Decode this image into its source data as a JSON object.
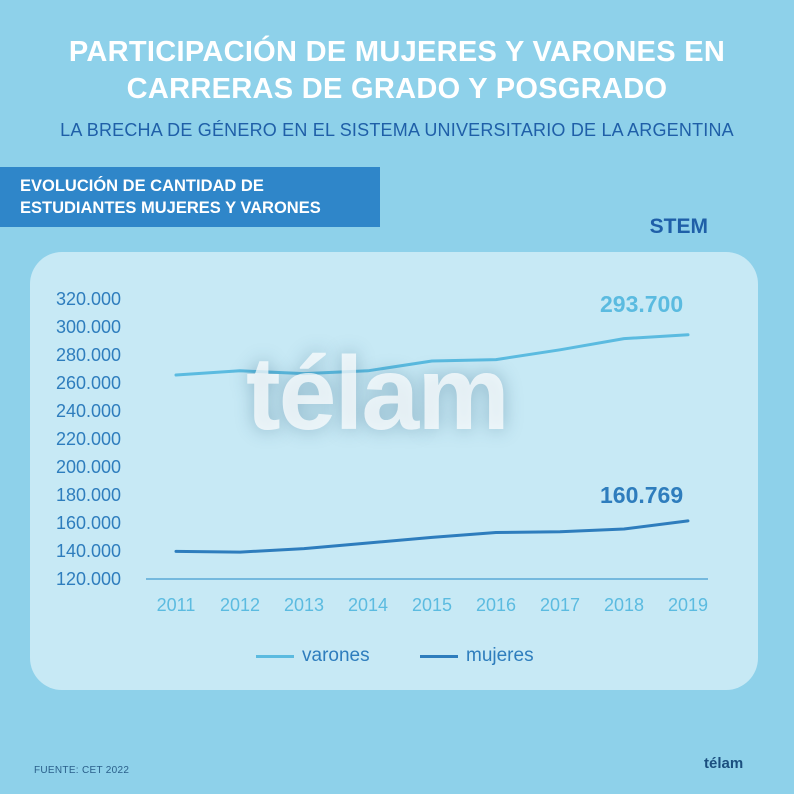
{
  "header": {
    "title_line1": "PARTICIPACIÓN DE MUJERES Y VARONES EN",
    "title_line2": "CARRERAS DE GRADO Y POSGRADO",
    "subtitle": "LA BRECHA DE GÉNERO EN EL SISTEMA UNIVERSITARIO DE LA ARGENTINA"
  },
  "banner": {
    "line1": "EVOLUCIÓN DE CANTIDAD DE",
    "line2": "ESTUDIANTES MUJERES Y VARONES"
  },
  "section_label": "STEM",
  "watermark": "télam",
  "footer": {
    "source": "FUENTE: CET 2022",
    "logo": "télam"
  },
  "colors": {
    "background": "#8ed1ea",
    "card": "#c7e9f5",
    "varones": "#5bbbe0",
    "mujeres": "#2e7dbd",
    "axis_text": "#2e7dbd"
  },
  "chart_data": {
    "type": "line",
    "x": [
      "2011",
      "2012",
      "2013",
      "2014",
      "2015",
      "2016",
      "2017",
      "2018",
      "2019"
    ],
    "ylim": [
      120000,
      320000
    ],
    "yticks": [
      "320.000",
      "300.000",
      "280.000",
      "260.000",
      "240.000",
      "220.000",
      "200.000",
      "180.000",
      "160.000",
      "140.000",
      "120.000"
    ],
    "ytick_values": [
      320000,
      300000,
      280000,
      260000,
      240000,
      220000,
      200000,
      180000,
      160000,
      140000,
      120000
    ],
    "series": [
      {
        "name": "varones",
        "color": "#5bbbe0",
        "values": [
          265000,
          268000,
          266000,
          268000,
          275000,
          276000,
          283000,
          291000,
          293700
        ],
        "end_label": "293.700"
      },
      {
        "name": "mujeres",
        "color": "#2e7dbd",
        "values": [
          139000,
          138500,
          141000,
          145000,
          149000,
          152500,
          153000,
          155000,
          160769
        ],
        "end_label": "160.769"
      }
    ],
    "grid": false,
    "legend": "bottom"
  }
}
